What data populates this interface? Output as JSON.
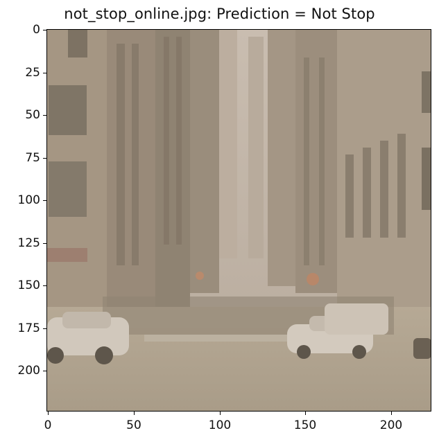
{
  "figure": {
    "title": "not_stop_online.jpg: Prediction = Not Stop"
  },
  "axes": {
    "y_ticks": [
      "0",
      "25",
      "50",
      "75",
      "100",
      "125",
      "150",
      "175",
      "200"
    ],
    "x_ticks": [
      "0",
      "50",
      "100",
      "150",
      "200"
    ],
    "x_range": [
      -0.5,
      223.5
    ],
    "y_range": [
      223.5,
      -0.5
    ]
  },
  "image": {
    "description_tone": "#b3a594",
    "icon": "city-street-photo-icon"
  }
}
